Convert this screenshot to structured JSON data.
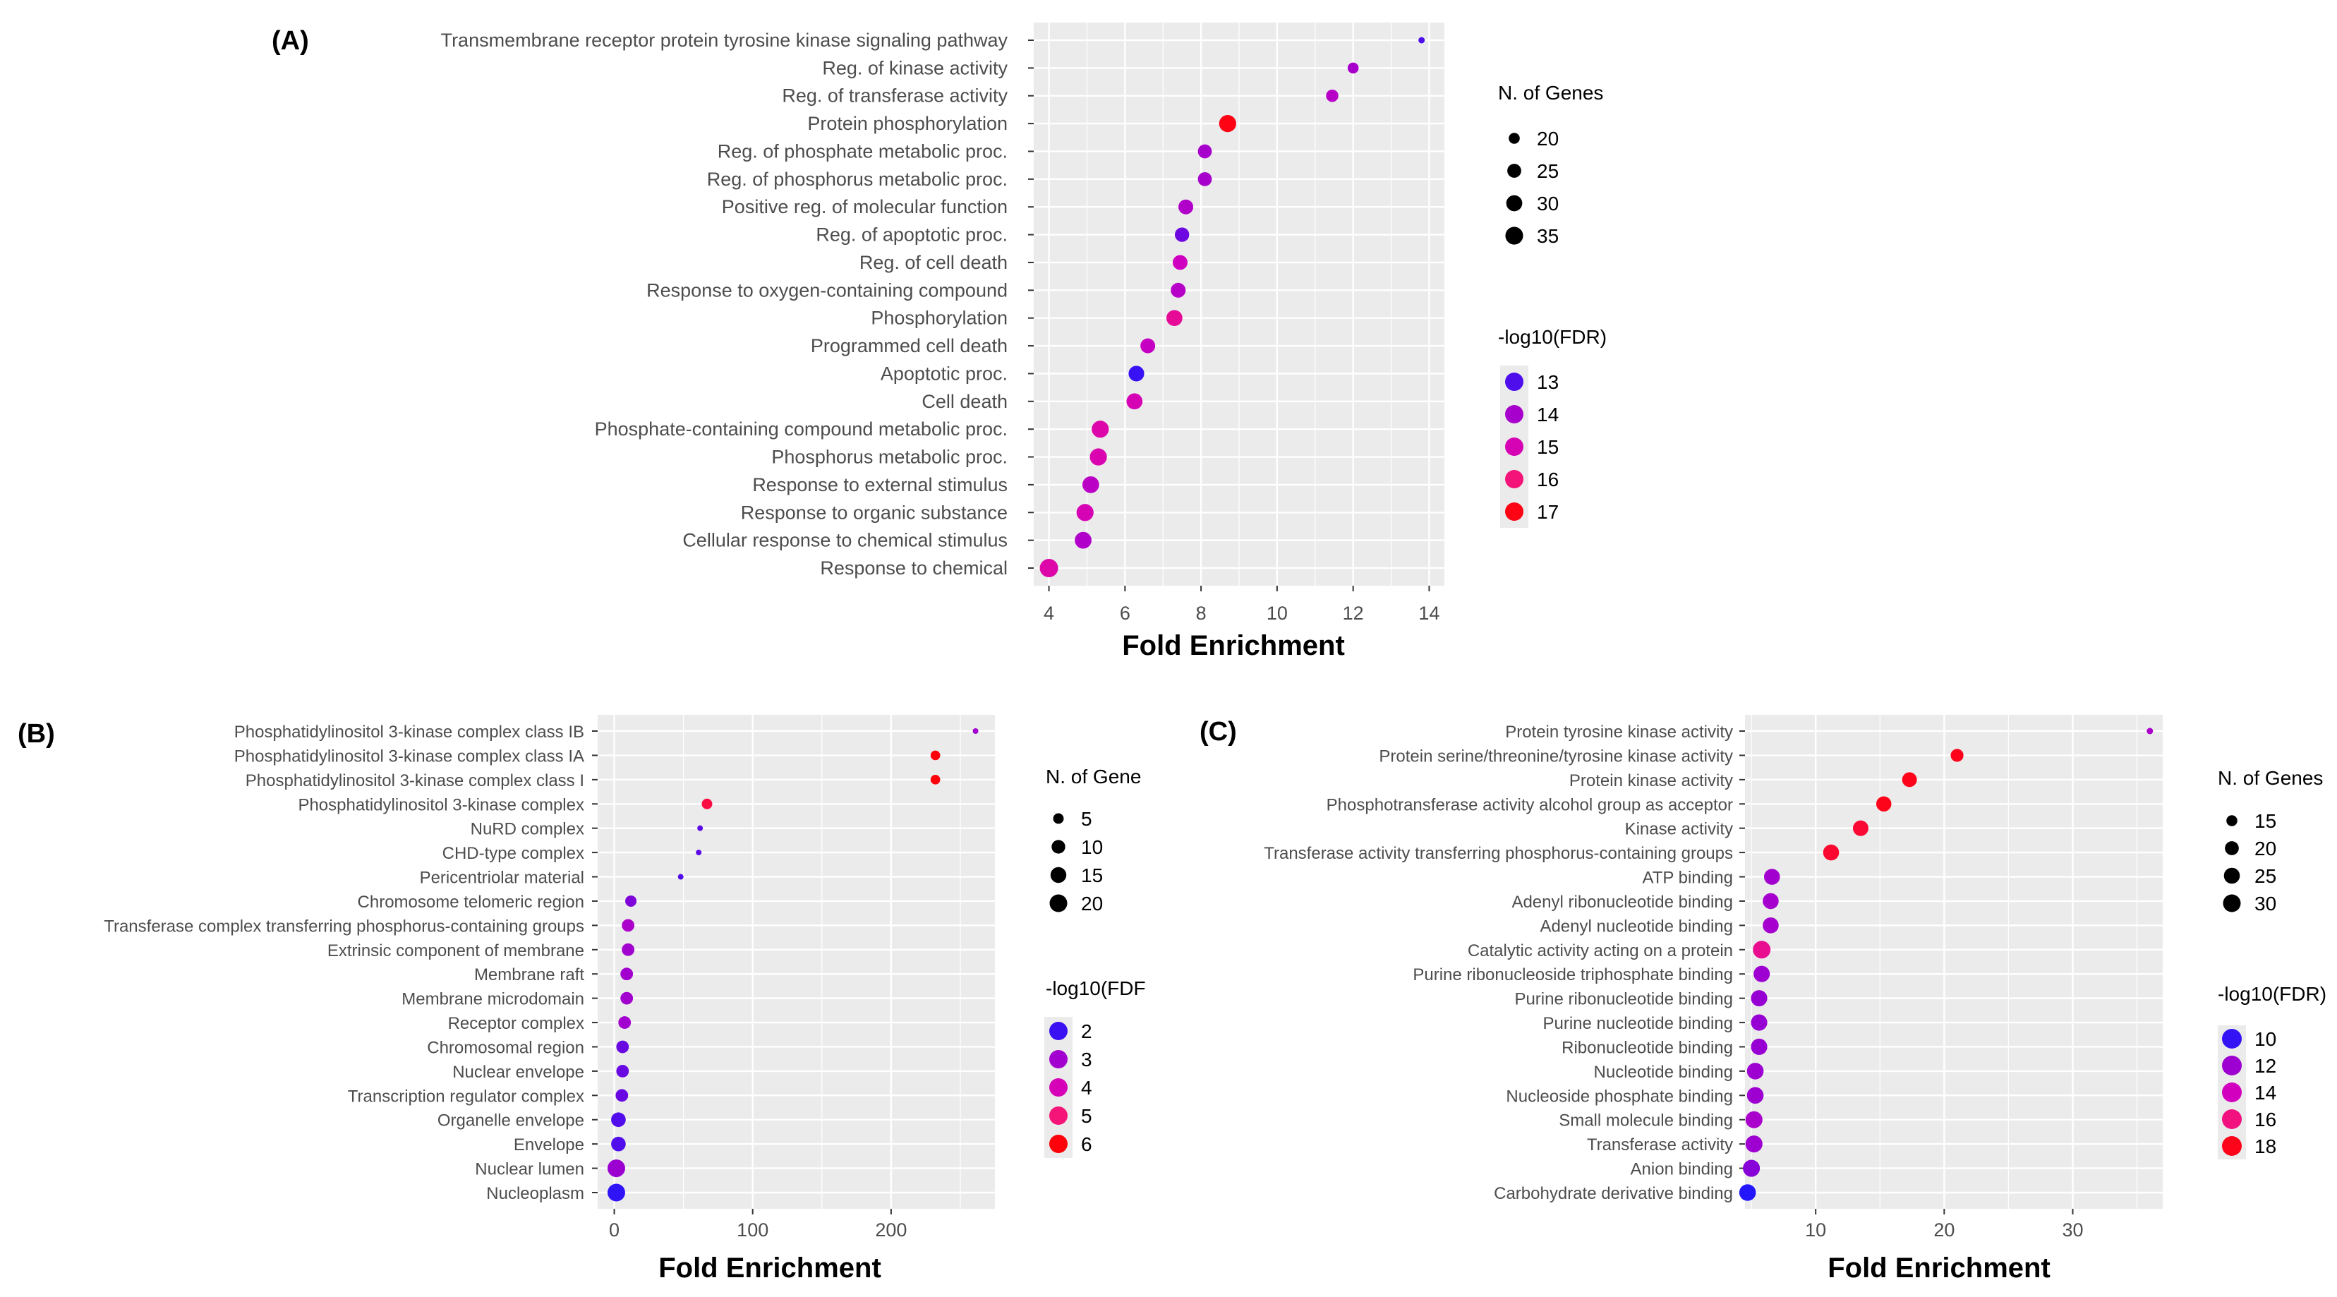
{
  "chart_data": [
    {
      "panel": "(A)",
      "type": "scatter",
      "xlabel": "Fold Enrichment",
      "xlim": [
        3.6,
        14.4
      ],
      "xticks": [
        4,
        6,
        8,
        10,
        12,
        14
      ],
      "size_legend_title": "N. of Genes",
      "size_legend": [
        20,
        25,
        30,
        35
      ],
      "color_legend_title": "-log10(FDR)",
      "color_legend": [
        13,
        14,
        15,
        16,
        17
      ],
      "color_range": [
        12.5,
        17.2
      ],
      "points": [
        {
          "term": "Transmembrane receptor protein tyrosine kinase signaling pathway",
          "fold": 13.8,
          "genes": 17,
          "fdr": 13.0
        },
        {
          "term": "Reg. of kinase activity",
          "fold": 12.0,
          "genes": 20,
          "fdr": 14.0
        },
        {
          "term": "Reg. of transferase activity",
          "fold": 11.45,
          "genes": 22,
          "fdr": 14.3
        },
        {
          "term": "Protein phosphorylation",
          "fold": 8.7,
          "genes": 33,
          "fdr": 17.0
        },
        {
          "term": "Reg. of phosphate metabolic proc.",
          "fold": 8.1,
          "genes": 25,
          "fdr": 14.0
        },
        {
          "term": "Reg. of phosphorus metabolic proc.",
          "fold": 8.1,
          "genes": 25,
          "fdr": 14.0
        },
        {
          "term": "Positive reg. of molecular function",
          "fold": 7.6,
          "genes": 27,
          "fdr": 14.2
        },
        {
          "term": "Reg. of apoptotic proc.",
          "fold": 7.5,
          "genes": 26,
          "fdr": 13.3
        },
        {
          "term": "Reg. of cell death",
          "fold": 7.45,
          "genes": 27,
          "fdr": 14.8
        },
        {
          "term": "Response to oxygen-containing compound",
          "fold": 7.4,
          "genes": 27,
          "fdr": 14.3
        },
        {
          "term": "Phosphorylation",
          "fold": 7.3,
          "genes": 30,
          "fdr": 15.5
        },
        {
          "term": "Programmed cell death",
          "fold": 6.6,
          "genes": 27,
          "fdr": 14.6
        },
        {
          "term": "Apoptotic proc.",
          "fold": 6.3,
          "genes": 29,
          "fdr": 12.8
        },
        {
          "term": "Cell death",
          "fold": 6.25,
          "genes": 30,
          "fdr": 15.0
        },
        {
          "term": "Phosphate-containing compound metabolic proc.",
          "fold": 5.35,
          "genes": 33,
          "fdr": 15.2
        },
        {
          "term": "Phosphorus metabolic proc.",
          "fold": 5.3,
          "genes": 33,
          "fdr": 15.1
        },
        {
          "term": "Response to external stimulus",
          "fold": 5.1,
          "genes": 32,
          "fdr": 14.4
        },
        {
          "term": "Response to organic substance",
          "fold": 4.95,
          "genes": 33,
          "fdr": 15.0
        },
        {
          "term": "Cellular response to chemical stimulus",
          "fold": 4.9,
          "genes": 32,
          "fdr": 14.2
        },
        {
          "term": "Response to chemical",
          "fold": 4.0,
          "genes": 37,
          "fdr": 15.2
        }
      ]
    },
    {
      "panel": "(B)",
      "type": "scatter",
      "xlabel": "Fold Enrichment",
      "xlim": [
        -12,
        275
      ],
      "xticks": [
        0,
        100,
        200
      ],
      "size_legend_title": "N. of Gene",
      "size_legend": [
        5,
        10,
        15,
        20
      ],
      "color_legend_title": "-log10(FDF",
      "color_legend": [
        2,
        3,
        4,
        5,
        6
      ],
      "color_range": [
        1.7,
        6.1
      ],
      "points": [
        {
          "term": "Phosphatidylinositol 3-kinase complex class IB",
          "fold": 261,
          "genes": 2,
          "fdr": 3.0
        },
        {
          "term": "Phosphatidylinositol 3-kinase complex class IA",
          "fold": 232,
          "genes": 4,
          "fdr": 6.0
        },
        {
          "term": "Phosphatidylinositol 3-kinase complex class I",
          "fold": 232,
          "genes": 4,
          "fdr": 6.0
        },
        {
          "term": "Phosphatidylinositol 3-kinase complex",
          "fold": 67,
          "genes": 5,
          "fdr": 5.5
        },
        {
          "term": "NuRD complex",
          "fold": 62,
          "genes": 2,
          "fdr": 2.3
        },
        {
          "term": "CHD-type complex",
          "fold": 61,
          "genes": 2,
          "fdr": 2.3
        },
        {
          "term": "Pericentriolar material",
          "fold": 48,
          "genes": 2,
          "fdr": 2.2
        },
        {
          "term": "Chromosome telomeric region",
          "fold": 12,
          "genes": 6,
          "fdr": 2.6
        },
        {
          "term": "Transferase complex transferring phosphorus-containing groups",
          "fold": 10,
          "genes": 8,
          "fdr": 3.2
        },
        {
          "term": "Extrinsic component of membrane",
          "fold": 10,
          "genes": 8,
          "fdr": 3.0
        },
        {
          "term": "Membrane raft",
          "fold": 9,
          "genes": 8,
          "fdr": 3.0
        },
        {
          "term": "Membrane microdomain",
          "fold": 9,
          "genes": 8,
          "fdr": 3.0
        },
        {
          "term": "Receptor complex",
          "fold": 7.5,
          "genes": 8,
          "fdr": 3.0
        },
        {
          "term": "Chromosomal region",
          "fold": 6,
          "genes": 8,
          "fdr": 2.4
        },
        {
          "term": "Nuclear envelope",
          "fold": 6,
          "genes": 8,
          "fdr": 2.4
        },
        {
          "term": "Transcription regulator complex",
          "fold": 5.5,
          "genes": 8,
          "fdr": 2.4
        },
        {
          "term": "Organelle envelope",
          "fold": 3,
          "genes": 12,
          "fdr": 2.2
        },
        {
          "term": "Envelope",
          "fold": 3,
          "genes": 12,
          "fdr": 2.2
        },
        {
          "term": "Nuclear lumen",
          "fold": 1.5,
          "genes": 20,
          "fdr": 2.9
        },
        {
          "term": "Nucleoplasm",
          "fold": 1.5,
          "genes": 20,
          "fdr": 1.9
        }
      ]
    },
    {
      "panel": "(C)",
      "type": "scatter",
      "xlabel": "Fold Enrichment",
      "xlim": [
        4.5,
        37
      ],
      "xticks": [
        10,
        20,
        30
      ],
      "size_legend_title": "N. of Genes",
      "size_legend": [
        15,
        20,
        25,
        30
      ],
      "color_legend_title": "-log10(FDR)",
      "color_legend": [
        10,
        12,
        14,
        16,
        18
      ],
      "color_range": [
        9.5,
        18.5
      ],
      "points": [
        {
          "term": "Protein tyrosine kinase activity",
          "fold": 36,
          "genes": 12,
          "fdr": 12.5
        },
        {
          "term": "Protein serine/threonine/tyrosine kinase activity",
          "fold": 21,
          "genes": 18,
          "fdr": 18.0
        },
        {
          "term": "Protein kinase activity",
          "fold": 17.3,
          "genes": 22,
          "fdr": 18.0
        },
        {
          "term": "Phosphotransferase activity alcohol group as acceptor",
          "fold": 15.3,
          "genes": 23,
          "fdr": 18.0
        },
        {
          "term": "Kinase activity",
          "fold": 13.5,
          "genes": 24,
          "fdr": 17.5
        },
        {
          "term": "Transferase activity transferring phosphorus-containing groups",
          "fold": 11.2,
          "genes": 25,
          "fdr": 17.6
        },
        {
          "term": "ATP binding",
          "fold": 6.6,
          "genes": 25,
          "fdr": 12.2
        },
        {
          "term": "Adenyl ribonucleotide binding",
          "fold": 6.5,
          "genes": 25,
          "fdr": 12.3
        },
        {
          "term": "Adenyl nucleotide binding",
          "fold": 6.5,
          "genes": 25,
          "fdr": 12.3
        },
        {
          "term": "Catalytic activity acting on a protein",
          "fold": 5.8,
          "genes": 30,
          "fdr": 15.5
        },
        {
          "term": "Purine ribonucleoside triphosphate binding",
          "fold": 5.8,
          "genes": 26,
          "fdr": 12.0
        },
        {
          "term": "Purine ribonucleotide binding",
          "fold": 5.6,
          "genes": 26,
          "fdr": 11.8
        },
        {
          "term": "Purine nucleotide binding",
          "fold": 5.6,
          "genes": 26,
          "fdr": 11.8
        },
        {
          "term": "Ribonucleotide binding",
          "fold": 5.6,
          "genes": 26,
          "fdr": 11.8
        },
        {
          "term": "Nucleotide binding",
          "fold": 5.3,
          "genes": 27,
          "fdr": 12.0
        },
        {
          "term": "Nucleoside phosphate binding",
          "fold": 5.3,
          "genes": 27,
          "fdr": 12.0
        },
        {
          "term": "Small molecule binding",
          "fold": 5.2,
          "genes": 28,
          "fdr": 12.5
        },
        {
          "term": "Transferase activity",
          "fold": 5.2,
          "genes": 28,
          "fdr": 12.0
        },
        {
          "term": "Anion binding",
          "fold": 5.0,
          "genes": 28,
          "fdr": 11.5
        },
        {
          "term": "Carbohydrate derivative binding",
          "fold": 4.7,
          "genes": 27,
          "fdr": 9.7
        }
      ]
    }
  ]
}
